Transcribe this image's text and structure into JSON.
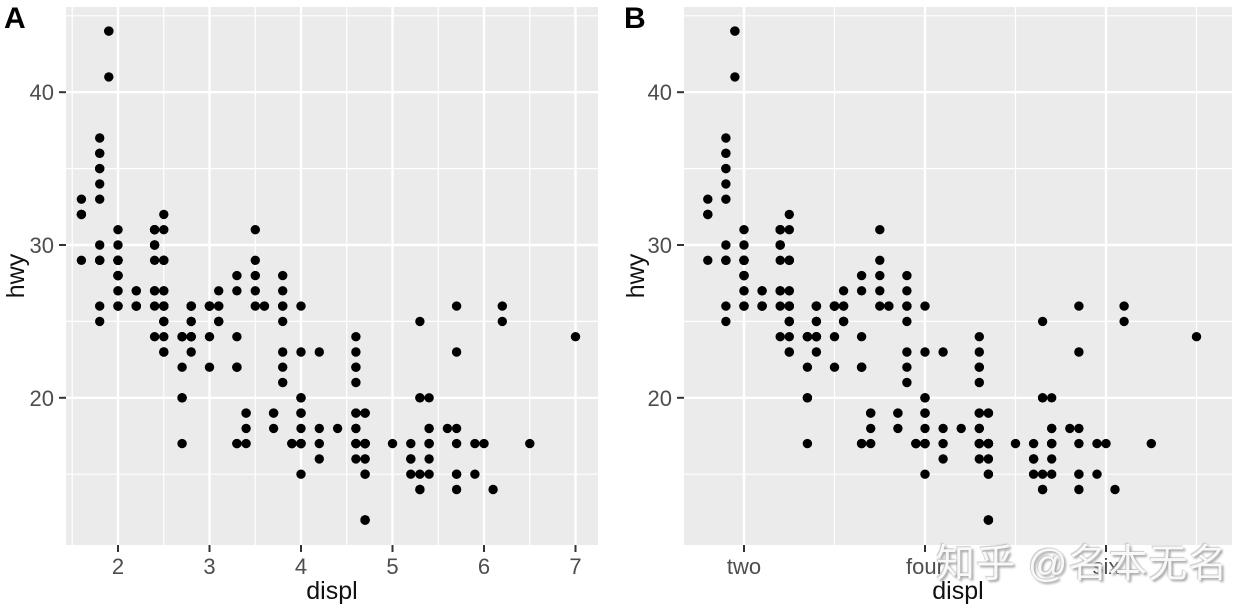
{
  "watermark": "知乎 @名本无名",
  "colors": {
    "background": "#ffffff",
    "panel_bg": "#ebebeb",
    "grid": "#ffffff",
    "point": "#000000",
    "axis_text": "#4d4d4d",
    "axis_title": "#111111",
    "tick_mark": "#333333",
    "panel_label": "#000000"
  },
  "points": [
    [
      1.8,
      29
    ],
    [
      1.8,
      29
    ],
    [
      2.0,
      31
    ],
    [
      2.0,
      30
    ],
    [
      2.8,
      26
    ],
    [
      2.8,
      26
    ],
    [
      3.1,
      27
    ],
    [
      1.8,
      26
    ],
    [
      1.8,
      25
    ],
    [
      2.0,
      28
    ],
    [
      2.0,
      27
    ],
    [
      2.8,
      25
    ],
    [
      2.8,
      25
    ],
    [
      3.1,
      25
    ],
    [
      3.1,
      25
    ],
    [
      2.8,
      24
    ],
    [
      3.1,
      25
    ],
    [
      4.2,
      23
    ],
    [
      5.3,
      20
    ],
    [
      5.3,
      15
    ],
    [
      5.3,
      20
    ],
    [
      5.7,
      17
    ],
    [
      6.0,
      17
    ],
    [
      5.7,
      26
    ],
    [
      5.7,
      23
    ],
    [
      6.2,
      26
    ],
    [
      6.2,
      25
    ],
    [
      7.0,
      24
    ],
    [
      5.3,
      14
    ],
    [
      5.3,
      14
    ],
    [
      5.7,
      15
    ],
    [
      6.5,
      17
    ],
    [
      2.4,
      27
    ],
    [
      2.4,
      30
    ],
    [
      3.1,
      26
    ],
    [
      3.5,
      29
    ],
    [
      3.6,
      26
    ],
    [
      2.4,
      24
    ],
    [
      3.0,
      24
    ],
    [
      3.3,
      22
    ],
    [
      3.3,
      22
    ],
    [
      3.3,
      24
    ],
    [
      3.3,
      22
    ],
    [
      3.3,
      17
    ],
    [
      3.8,
      22
    ],
    [
      3.8,
      21
    ],
    [
      3.8,
      23
    ],
    [
      4.0,
      23
    ],
    [
      3.7,
      19
    ],
    [
      3.7,
      18
    ],
    [
      3.9,
      17
    ],
    [
      3.9,
      17
    ],
    [
      4.7,
      19
    ],
    [
      4.7,
      19
    ],
    [
      4.7,
      12
    ],
    [
      5.2,
      17
    ],
    [
      5.2,
      15
    ],
    [
      3.9,
      17
    ],
    [
      4.7,
      17
    ],
    [
      4.7,
      12
    ],
    [
      4.7,
      17
    ],
    [
      4.7,
      16
    ],
    [
      5.2,
      16
    ],
    [
      5.9,
      15
    ],
    [
      4.7,
      16
    ],
    [
      4.7,
      12
    ],
    [
      4.7,
      17
    ],
    [
      4.7,
      15
    ],
    [
      4.7,
      17
    ],
    [
      4.7,
      17
    ],
    [
      5.2,
      16
    ],
    [
      5.2,
      16
    ],
    [
      5.7,
      15
    ],
    [
      5.9,
      17
    ],
    [
      4.6,
      17
    ],
    [
      5.4,
      17
    ],
    [
      5.4,
      18
    ],
    [
      4.0,
      17
    ],
    [
      4.0,
      19
    ],
    [
      4.0,
      17
    ],
    [
      4.0,
      19
    ],
    [
      4.6,
      19
    ],
    [
      5.0,
      17
    ],
    [
      4.2,
      17
    ],
    [
      4.2,
      16
    ],
    [
      4.6,
      18
    ],
    [
      4.6,
      16
    ],
    [
      4.6,
      17
    ],
    [
      5.4,
      17
    ],
    [
      5.4,
      15
    ],
    [
      3.8,
      26
    ],
    [
      3.8,
      25
    ],
    [
      4.0,
      26
    ],
    [
      4.6,
      24
    ],
    [
      4.6,
      21
    ],
    [
      4.6,
      22
    ],
    [
      4.6,
      23
    ],
    [
      4.6,
      22
    ],
    [
      5.4,
      20
    ],
    [
      1.6,
      33
    ],
    [
      1.6,
      32
    ],
    [
      1.6,
      32
    ],
    [
      1.6,
      29
    ],
    [
      1.6,
      32
    ],
    [
      1.8,
      34
    ],
    [
      1.8,
      36
    ],
    [
      1.8,
      36
    ],
    [
      2.0,
      29
    ],
    [
      2.4,
      26
    ],
    [
      2.4,
      27
    ],
    [
      2.4,
      30
    ],
    [
      2.4,
      31
    ],
    [
      2.5,
      26
    ],
    [
      2.5,
      29
    ],
    [
      3.3,
      28
    ],
    [
      2.0,
      26
    ],
    [
      2.0,
      29
    ],
    [
      2.0,
      28
    ],
    [
      2.0,
      27
    ],
    [
      2.7,
      24
    ],
    [
      2.7,
      24
    ],
    [
      2.7,
      24
    ],
    [
      3.0,
      22
    ],
    [
      3.7,
      19
    ],
    [
      4.0,
      20
    ],
    [
      4.7,
      17
    ],
    [
      4.7,
      12
    ],
    [
      4.7,
      19
    ],
    [
      5.7,
      14
    ],
    [
      6.1,
      14
    ],
    [
      4.0,
      15
    ],
    [
      4.2,
      18
    ],
    [
      4.4,
      18
    ],
    [
      4.6,
      18
    ],
    [
      5.4,
      17
    ],
    [
      5.4,
      16
    ],
    [
      5.4,
      18
    ],
    [
      4.0,
      17
    ],
    [
      4.0,
      19
    ],
    [
      4.6,
      19
    ],
    [
      4.6,
      17
    ],
    [
      2.4,
      29
    ],
    [
      2.4,
      27
    ],
    [
      2.5,
      31
    ],
    [
      2.5,
      32
    ],
    [
      3.5,
      26
    ],
    [
      3.5,
      27
    ],
    [
      3.0,
      26
    ],
    [
      3.0,
      26
    ],
    [
      3.5,
      28
    ],
    [
      3.3,
      17
    ],
    [
      4.0,
      17
    ],
    [
      4.0,
      20
    ],
    [
      5.6,
      18
    ],
    [
      3.1,
      26
    ],
    [
      3.8,
      26
    ],
    [
      3.8,
      27
    ],
    [
      3.8,
      28
    ],
    [
      5.3,
      25
    ],
    [
      2.5,
      23
    ],
    [
      2.5,
      24
    ],
    [
      2.5,
      25
    ],
    [
      2.5,
      27
    ],
    [
      2.5,
      25
    ],
    [
      2.5,
      26
    ],
    [
      2.2,
      26
    ],
    [
      2.2,
      26
    ],
    [
      2.5,
      25
    ],
    [
      2.5,
      25
    ],
    [
      2.5,
      26
    ],
    [
      2.5,
      27
    ],
    [
      2.5,
      26
    ],
    [
      2.5,
      23
    ],
    [
      2.7,
      20
    ],
    [
      2.7,
      20
    ],
    [
      3.4,
      19
    ],
    [
      3.4,
      17
    ],
    [
      4.0,
      20
    ],
    [
      4.7,
      17
    ],
    [
      2.2,
      26
    ],
    [
      2.2,
      27
    ],
    [
      2.4,
      30
    ],
    [
      2.4,
      31
    ],
    [
      3.0,
      26
    ],
    [
      3.0,
      26
    ],
    [
      3.5,
      31
    ],
    [
      2.2,
      26
    ],
    [
      2.2,
      27
    ],
    [
      2.4,
      31
    ],
    [
      2.4,
      31
    ],
    [
      3.0,
      26
    ],
    [
      3.0,
      26
    ],
    [
      3.3,
      27
    ],
    [
      1.8,
      30
    ],
    [
      1.8,
      33
    ],
    [
      1.8,
      35
    ],
    [
      1.8,
      37
    ],
    [
      1.8,
      35
    ],
    [
      4.7,
      15
    ],
    [
      5.7,
      18
    ],
    [
      2.7,
      20
    ],
    [
      2.7,
      22
    ],
    [
      2.7,
      17
    ],
    [
      3.4,
      19
    ],
    [
      3.4,
      18
    ],
    [
      4.0,
      20
    ],
    [
      4.0,
      18
    ],
    [
      2.0,
      29
    ],
    [
      2.0,
      29
    ],
    [
      2.0,
      28
    ],
    [
      2.0,
      29
    ],
    [
      2.8,
      24
    ],
    [
      1.9,
      44
    ],
    [
      2.0,
      29
    ],
    [
      2.0,
      26
    ],
    [
      2.0,
      29
    ],
    [
      2.0,
      29
    ],
    [
      2.5,
      29
    ],
    [
      2.5,
      29
    ],
    [
      2.8,
      24
    ],
    [
      2.8,
      23
    ],
    [
      1.9,
      44
    ],
    [
      1.9,
      41
    ],
    [
      2.0,
      29
    ],
    [
      2.0,
      26
    ],
    [
      2.0,
      28
    ],
    [
      2.5,
      29
    ],
    [
      1.8,
      29
    ],
    [
      1.8,
      29
    ],
    [
      2.0,
      28
    ],
    [
      2.0,
      29
    ],
    [
      2.8,
      26
    ],
    [
      2.8,
      26
    ],
    [
      3.6,
      26
    ]
  ],
  "chart_data": [
    {
      "type": "scatter",
      "panel_label": "A",
      "xlabel": "displ",
      "ylabel": "hwy",
      "x_ticks": [
        {
          "value": 2,
          "label": "2"
        },
        {
          "value": 3,
          "label": "3"
        },
        {
          "value": 4,
          "label": "4"
        },
        {
          "value": 5,
          "label": "5"
        },
        {
          "value": 6,
          "label": "6"
        },
        {
          "value": 7,
          "label": "7"
        }
      ],
      "x_minor": [
        1.5,
        2.5,
        3.5,
        4.5,
        5.5,
        6.5,
        7.5
      ],
      "y_ticks": [
        {
          "value": 20,
          "label": "20"
        },
        {
          "value": 30,
          "label": "30"
        },
        {
          "value": 40,
          "label": "40"
        }
      ],
      "y_minor": [
        15,
        25,
        35,
        45
      ],
      "xlim": [
        1.4,
        7.3
      ],
      "ylim": [
        10.4,
        45.6
      ],
      "grid": true,
      "legend": "none",
      "points_ref": "points"
    },
    {
      "type": "scatter",
      "panel_label": "B",
      "xlabel": "displ",
      "ylabel": "hwy",
      "x_ticks": [
        {
          "value": 2,
          "label": "two"
        },
        {
          "value": 4,
          "label": "four"
        },
        {
          "value": 6,
          "label": "six"
        }
      ],
      "x_minor": [
        1,
        3,
        5,
        7
      ],
      "y_ticks": [
        {
          "value": 20,
          "label": "20"
        },
        {
          "value": 30,
          "label": "30"
        },
        {
          "value": 40,
          "label": "40"
        }
      ],
      "y_minor": [
        15,
        25,
        35,
        45
      ],
      "xlim": [
        1.4,
        7.4
      ],
      "ylim": [
        10.4,
        45.6
      ],
      "grid": true,
      "legend": "none",
      "points_ref": "points"
    }
  ]
}
